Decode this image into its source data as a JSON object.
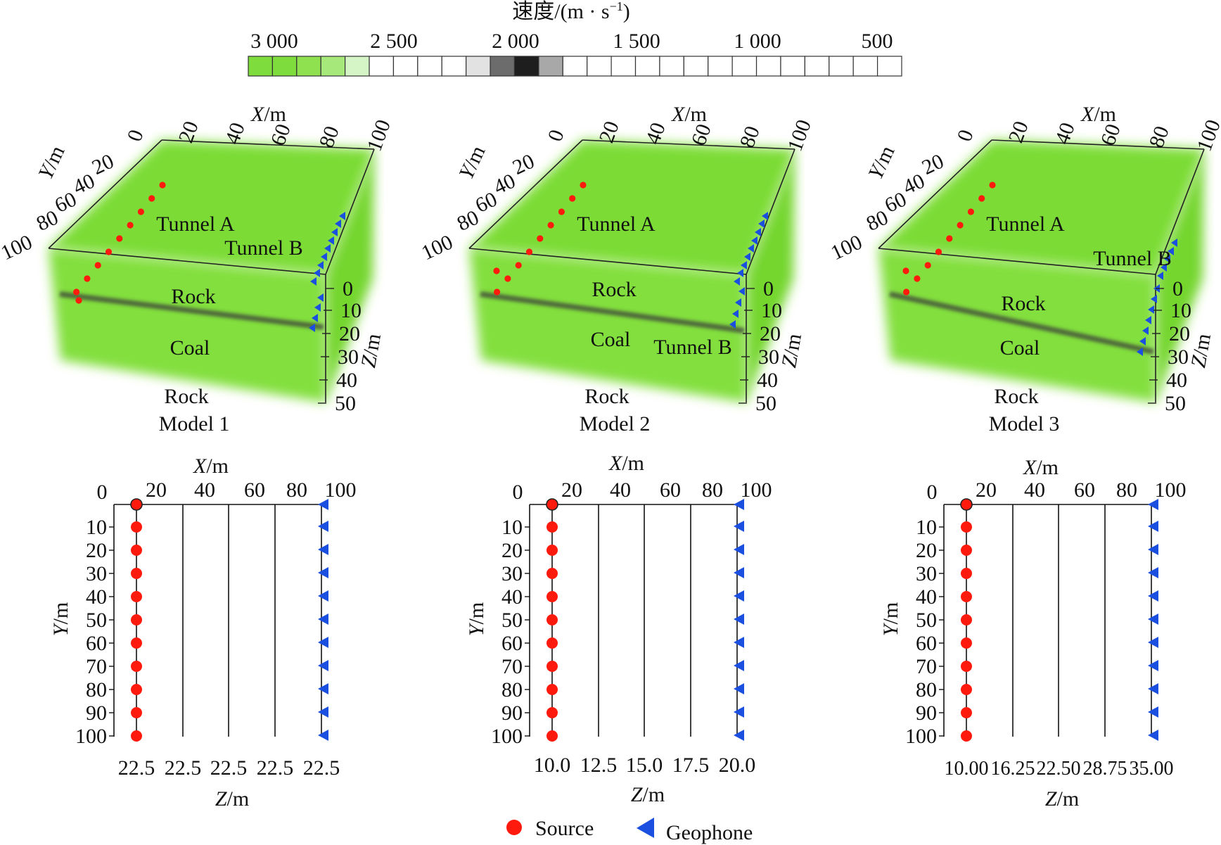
{
  "colorbar": {
    "title": "速度/(m · s",
    "title_sup": "−1",
    "title_close": ")",
    "tick_labels": [
      "3 000",
      "2 500",
      "2 000",
      "1 500",
      "1 000",
      "500"
    ],
    "cells": [
      "#7edc3c",
      "#7edc3c",
      "#8fe14f",
      "#a6e87a",
      "#d6f5c6",
      "#ffffff",
      "#ffffff",
      "#ffffff",
      "#ffffff",
      "#e2e2e2",
      "#6c6c6c",
      "#1e1e1e",
      "#a8a8a8",
      "#ffffff",
      "#ffffff",
      "#ffffff",
      "#ffffff",
      "#ffffff",
      "#ffffff",
      "#ffffff",
      "#ffffff",
      "#ffffff",
      "#ffffff",
      "#ffffff",
      "#ffffff",
      "#ffffff",
      "#ffffff"
    ]
  },
  "axis_labels": {
    "x_letter": "X",
    "y_letter": "Y",
    "z_letter": "Z",
    "unit": "/m"
  },
  "models": [
    {
      "caption": "Model 1",
      "x_ticks": [
        "0",
        "20",
        "40",
        "60",
        "80",
        "100"
      ],
      "y_ticks": [
        "20",
        "40",
        "60",
        "80",
        "100"
      ],
      "z_ticks": [
        "0",
        "10",
        "20",
        "30",
        "40",
        "50"
      ],
      "labels": {
        "tunnel_a": "Tunnel A",
        "tunnel_b": "Tunnel B",
        "rock_top": "Rock",
        "coal": "Coal",
        "rock_bottom": "Rock"
      },
      "plan": {
        "x_ticks": [
          "0",
          "20",
          "40",
          "60",
          "80",
          "100"
        ],
        "y_ticks": [
          "10",
          "20",
          "30",
          "40",
          "50",
          "60",
          "70",
          "80",
          "90",
          "100"
        ],
        "z_ticks": [
          "22.5",
          "22.5",
          "22.5",
          "22.5",
          "22.5"
        ]
      }
    },
    {
      "caption": "Model 2",
      "x_ticks": [
        "0",
        "20",
        "40",
        "60",
        "80",
        "100"
      ],
      "y_ticks": [
        "20",
        "40",
        "60",
        "80",
        "100"
      ],
      "z_ticks": [
        "0",
        "10",
        "20",
        "30",
        "40",
        "50"
      ],
      "labels": {
        "tunnel_a": "Tunnel A",
        "tunnel_b": "Tunnel B",
        "rock_top": "Rock",
        "coal": "Coal",
        "rock_bottom": "Rock"
      },
      "plan": {
        "x_ticks": [
          "0",
          "20",
          "40",
          "60",
          "80",
          "100"
        ],
        "y_ticks": [
          "10",
          "20",
          "30",
          "40",
          "50",
          "60",
          "70",
          "80",
          "90",
          "100"
        ],
        "z_ticks": [
          "10.0",
          "12.5",
          "15.0",
          "17.5",
          "20.0"
        ]
      }
    },
    {
      "caption": "Model 3",
      "x_ticks": [
        "0",
        "20",
        "40",
        "60",
        "80",
        "100"
      ],
      "y_ticks": [
        "20",
        "40",
        "60",
        "80",
        "100"
      ],
      "z_ticks": [
        "0",
        "10",
        "20",
        "30",
        "40",
        "50"
      ],
      "labels": {
        "tunnel_a": "Tunnel A",
        "tunnel_b": "Tunnel B",
        "rock_top": "Rock",
        "coal": "Coal",
        "rock_bottom": "Rock"
      },
      "plan": {
        "x_ticks": [
          "0",
          "20",
          "40",
          "60",
          "80",
          "100"
        ],
        "y_ticks": [
          "10",
          "20",
          "30",
          "40",
          "50",
          "60",
          "70",
          "80",
          "90",
          "100"
        ],
        "z_ticks": [
          "10.00",
          "16.25",
          "22.50",
          "28.75",
          "35.00"
        ]
      }
    }
  ],
  "legend": {
    "source": "Source",
    "geophone": "Geophone"
  },
  "colors": {
    "block_green": "#7fde35",
    "source_red": "#ff1a0e",
    "geophone_blue": "#1a4fe0"
  }
}
